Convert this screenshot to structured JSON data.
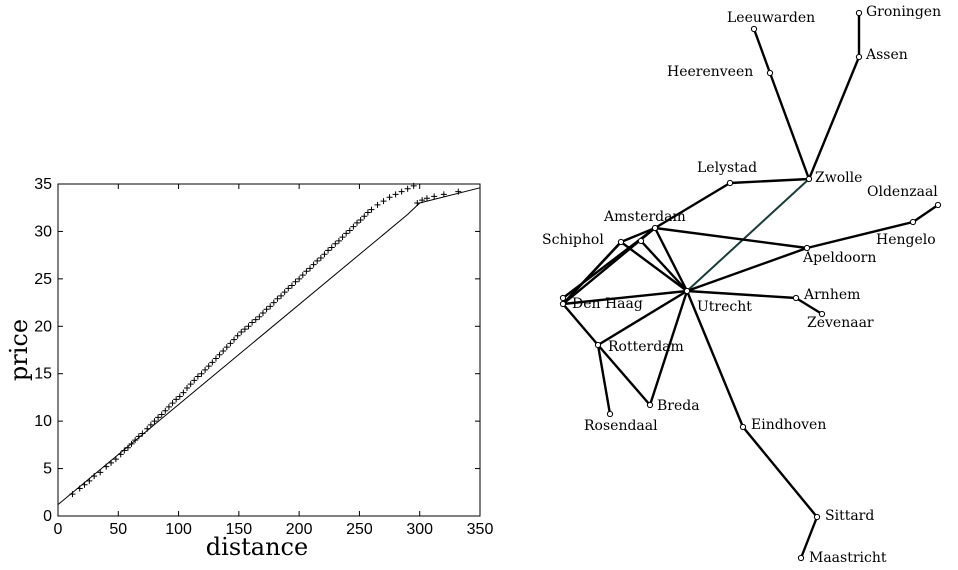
{
  "chart_data": [
    {
      "type": "scatter",
      "title": "",
      "xlabel": "distance",
      "ylabel": "price",
      "xlim": [
        0,
        350
      ],
      "ylim": [
        0,
        35
      ],
      "xticks": [
        "0",
        "50",
        "100",
        "150",
        "200",
        "250",
        "300",
        "350"
      ],
      "yticks": [
        "0",
        "5",
        "10",
        "15",
        "20",
        "25",
        "30",
        "35"
      ],
      "grid": false,
      "series": [
        {
          "marker": "+",
          "points": [
            [
              12,
              2.3
            ],
            [
              18,
              2.9
            ],
            [
              22,
              3.3
            ],
            [
              26,
              3.7
            ],
            [
              30,
              4.2
            ],
            [
              35,
              4.6
            ],
            [
              40,
              5.2
            ],
            [
              44,
              5.6
            ],
            [
              48,
              6.0
            ],
            [
              52,
              6.5
            ],
            [
              55,
              6.9
            ],
            [
              58,
              7.2
            ],
            [
              61,
              7.6
            ],
            [
              64,
              8.0
            ],
            [
              67,
              8.4
            ],
            [
              70,
              8.7
            ],
            [
              74,
              9.2
            ],
            [
              77,
              9.6
            ],
            [
              80,
              10.0
            ],
            [
              83,
              10.4
            ],
            [
              86,
              10.7
            ],
            [
              89,
              11.1
            ],
            [
              92,
              11.5
            ],
            [
              95,
              11.9
            ],
            [
              98,
              12.3
            ],
            [
              101,
              12.6
            ],
            [
              104,
              13.0
            ],
            [
              107,
              13.5
            ],
            [
              110,
              13.9
            ],
            [
              113,
              14.3
            ],
            [
              116,
              14.7
            ],
            [
              119,
              15.0
            ],
            [
              122,
              15.4
            ],
            [
              125,
              15.8
            ],
            [
              128,
              16.2
            ],
            [
              131,
              16.6
            ],
            [
              134,
              17.0
            ],
            [
              137,
              17.4
            ],
            [
              140,
              17.8
            ],
            [
              143,
              18.2
            ],
            [
              146,
              18.6
            ],
            [
              149,
              19.0
            ],
            [
              152,
              19.4
            ],
            [
              155,
              19.7
            ],
            [
              158,
              20.0
            ],
            [
              161,
              20.4
            ],
            [
              164,
              20.7
            ],
            [
              167,
              21.0
            ],
            [
              170,
              21.4
            ],
            [
              173,
              21.8
            ],
            [
              176,
              22.1
            ],
            [
              179,
              22.5
            ],
            [
              182,
              22.9
            ],
            [
              185,
              23.2
            ],
            [
              188,
              23.6
            ],
            [
              191,
              24.0
            ],
            [
              194,
              24.3
            ],
            [
              197,
              24.7
            ],
            [
              200,
              25.0
            ],
            [
              203,
              25.4
            ],
            [
              206,
              25.8
            ],
            [
              209,
              26.1
            ],
            [
              212,
              26.5
            ],
            [
              215,
              26.9
            ],
            [
              218,
              27.2
            ],
            [
              221,
              27.6
            ],
            [
              224,
              28.0
            ],
            [
              227,
              28.3
            ],
            [
              230,
              28.7
            ],
            [
              233,
              29.0
            ],
            [
              236,
              29.4
            ],
            [
              239,
              29.8
            ],
            [
              242,
              30.1
            ],
            [
              245,
              30.5
            ],
            [
              248,
              30.9
            ],
            [
              251,
              31.2
            ],
            [
              254,
              31.6
            ],
            [
              257,
              32.0
            ],
            [
              260,
              32.3
            ],
            [
              265,
              32.8
            ],
            [
              270,
              33.2
            ],
            [
              275,
              33.6
            ],
            [
              280,
              33.9
            ],
            [
              285,
              34.2
            ],
            [
              290,
              34.5
            ],
            [
              295,
              34.8
            ],
            [
              298,
              33.0
            ],
            [
              302,
              33.3
            ],
            [
              306,
              33.5
            ],
            [
              312,
              33.7
            ],
            [
              320,
              33.9
            ],
            [
              332,
              34.2
            ]
          ]
        }
      ],
      "fit_line": [
        [
          0,
          1.2
        ],
        [
          290,
          31.8
        ],
        [
          300,
          33.0
        ],
        [
          350,
          34.6
        ]
      ]
    },
    {
      "type": "network-map",
      "nodes": [
        {
          "name": "Groningen",
          "label": "Groningen"
        },
        {
          "name": "Leeuwarden",
          "label": "Leeuwarden"
        },
        {
          "name": "Assen",
          "label": "Assen"
        },
        {
          "name": "Heerenveen",
          "label": "Heerenveen"
        },
        {
          "name": "Lelystad",
          "label": "Lelystad"
        },
        {
          "name": "Zwolle",
          "label": "Zwolle"
        },
        {
          "name": "Oldenzaal",
          "label": "Oldenzaal"
        },
        {
          "name": "Hengelo",
          "label": "Hengelo"
        },
        {
          "name": "Amsterdam",
          "label": "Amsterdam"
        },
        {
          "name": "Schiphol",
          "label": "Schiphol"
        },
        {
          "name": "Apeldoorn",
          "label": "Apeldoorn"
        },
        {
          "name": "Den Haag",
          "label": "Den Haag"
        },
        {
          "name": "Utrecht",
          "label": "Utrecht"
        },
        {
          "name": "Arnhem",
          "label": "Arnhem"
        },
        {
          "name": "Zevenaar",
          "label": "Zevenaar"
        },
        {
          "name": "Rotterdam",
          "label": "Rotterdam"
        },
        {
          "name": "Breda",
          "label": "Breda"
        },
        {
          "name": "Rosendaal",
          "label": "Rosendaal"
        },
        {
          "name": "Eindhoven",
          "label": "Eindhoven"
        },
        {
          "name": "Sittard",
          "label": "Sittard"
        },
        {
          "name": "Maastricht",
          "label": "Maastricht"
        }
      ],
      "edges": [
        [
          "Groningen",
          "Assen"
        ],
        [
          "Assen",
          "Zwolle"
        ],
        [
          "Leeuwarden",
          "Heerenveen"
        ],
        [
          "Heerenveen",
          "Zwolle"
        ],
        [
          "Zwolle",
          "Lelystad"
        ],
        [
          "Lelystad",
          "Amsterdam"
        ],
        [
          "Zwolle",
          "Utrecht"
        ],
        [
          "Amsterdam",
          "Schiphol"
        ],
        [
          "Amsterdam",
          "Apeldoorn"
        ],
        [
          "Amsterdam",
          "Utrecht"
        ],
        [
          "Schiphol",
          "Den Haag"
        ],
        [
          "Den Haag",
          "Amsterdam"
        ],
        [
          "Schiphol",
          "Utrecht"
        ],
        [
          "Apeldoorn",
          "Hengelo"
        ],
        [
          "Hengelo",
          "Oldenzaal"
        ],
        [
          "Apeldoorn",
          "Utrecht"
        ],
        [
          "Den Haag",
          "Utrecht"
        ],
        [
          "Den Haag",
          "Rotterdam"
        ],
        [
          "Rotterdam",
          "Utrecht"
        ],
        [
          "Rotterdam",
          "Breda"
        ],
        [
          "Rotterdam",
          "Rosendaal"
        ],
        [
          "Breda",
          "Utrecht"
        ],
        [
          "Utrecht",
          "Arnhem"
        ],
        [
          "Arnhem",
          "Zevenaar"
        ],
        [
          "Utrecht",
          "Eindhoven"
        ],
        [
          "Eindhoven",
          "Sittard"
        ],
        [
          "Sittard",
          "Maastricht"
        ]
      ],
      "highlighted_edges": [
        [
          "Zwolle",
          "Utrecht"
        ]
      ],
      "colors": {
        "edge": "#000000",
        "highlight_edge": "#1a3d3a",
        "node_fill": "#ffffff"
      }
    }
  ]
}
